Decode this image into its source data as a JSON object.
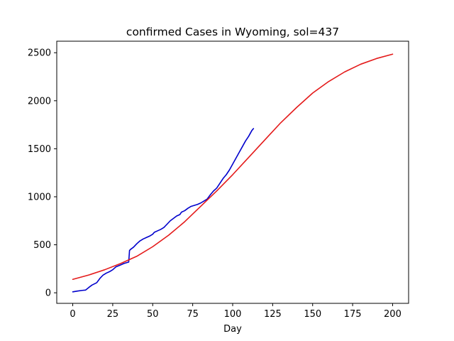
{
  "chart_data": {
    "type": "line",
    "title": "confirmed Cases in Wyoming, sol=437",
    "xlabel": "Day",
    "ylabel": "",
    "xlim": [
      -10,
      210
    ],
    "ylim": [
      -110,
      2620
    ],
    "xticks": [
      0,
      25,
      50,
      75,
      100,
      125,
      150,
      175,
      200
    ],
    "yticks": [
      0,
      500,
      1000,
      1500,
      2000,
      2500
    ],
    "grid": false,
    "legend": "none",
    "series": [
      {
        "color": "#0000cc",
        "x": [
          0,
          3,
          6,
          8,
          10,
          12,
          15,
          17,
          19,
          21,
          23,
          25,
          27,
          30,
          32,
          35,
          35.5,
          36,
          38,
          40,
          42,
          44,
          46,
          48,
          50,
          51,
          53,
          55,
          57,
          59,
          61,
          63,
          65,
          67,
          68,
          70,
          72,
          74,
          76,
          78,
          80,
          82,
          84,
          86,
          88,
          90,
          92,
          94,
          96,
          98,
          100,
          102,
          104,
          106,
          108,
          110,
          112,
          113
        ],
        "y": [
          10,
          18,
          25,
          28,
          55,
          80,
          105,
          150,
          185,
          205,
          220,
          240,
          270,
          290,
          305,
          320,
          440,
          450,
          475,
          510,
          540,
          560,
          575,
          590,
          610,
          630,
          645,
          660,
          680,
          715,
          750,
          775,
          800,
          815,
          840,
          855,
          880,
          900,
          910,
          920,
          935,
          955,
          975,
          1020,
          1060,
          1090,
          1140,
          1190,
          1230,
          1280,
          1340,
          1400,
          1460,
          1520,
          1580,
          1630,
          1690,
          1710
        ]
      },
      {
        "color": "#e41a1a",
        "x": [
          0,
          10,
          20,
          30,
          40,
          50,
          60,
          70,
          80,
          90,
          100,
          110,
          120,
          130,
          140,
          150,
          160,
          170,
          180,
          190,
          200
        ],
        "y": [
          140,
          185,
          240,
          305,
          380,
          480,
          600,
          740,
          900,
          1060,
          1230,
          1410,
          1590,
          1770,
          1930,
          2080,
          2200,
          2300,
          2380,
          2440,
          2485
        ]
      }
    ]
  }
}
